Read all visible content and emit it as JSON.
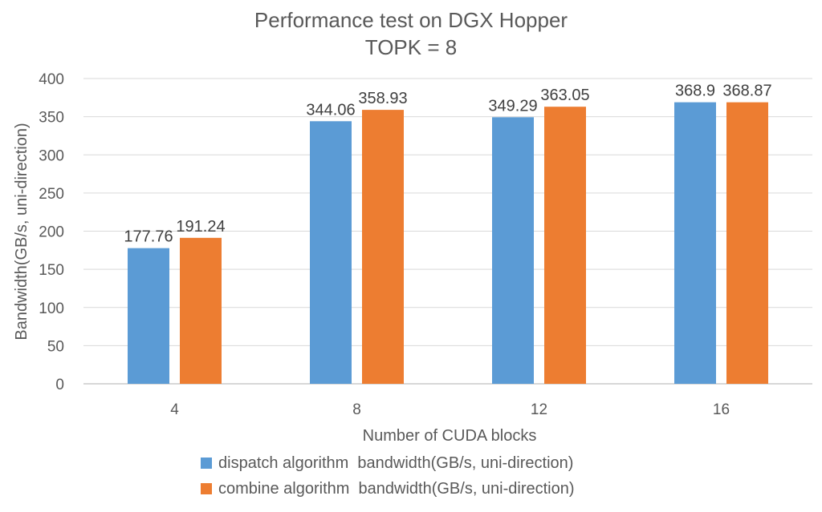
{
  "chart_data": {
    "type": "bar",
    "title": "Performance test on DGX Hopper",
    "subtitle": "TOPK = 8",
    "xlabel": "Number of CUDA blocks",
    "ylabel": "Bandwidth(GB/s, uni-direction)",
    "categories": [
      "4",
      "8",
      "12",
      "16"
    ],
    "ylim": [
      0,
      400
    ],
    "yticks": [
      0,
      50,
      100,
      150,
      200,
      250,
      300,
      350,
      400
    ],
    "grid": true,
    "legend_position": "bottom",
    "series": [
      {
        "name": "dispatch algorithm  bandwidth(GB/s, uni-direction)",
        "color": "#5b9bd5",
        "values": [
          177.76,
          344.06,
          349.29,
          368.9
        ]
      },
      {
        "name": "combine algorithm  bandwidth(GB/s, uni-direction)",
        "color": "#ed7d31",
        "values": [
          191.24,
          358.93,
          363.05,
          368.87
        ]
      }
    ]
  }
}
